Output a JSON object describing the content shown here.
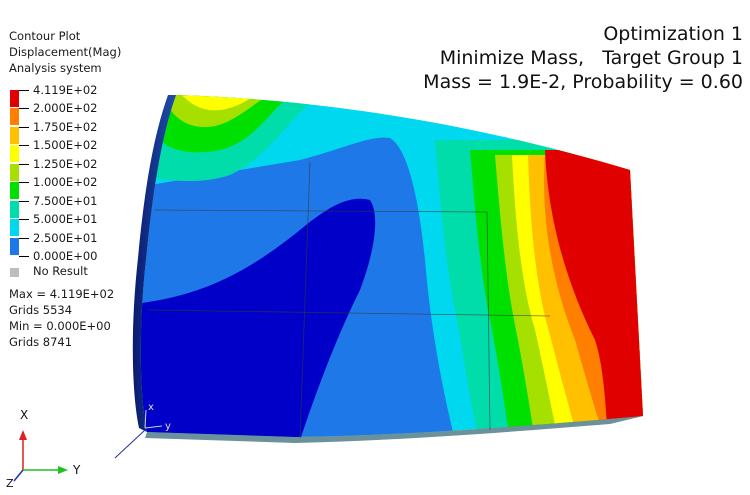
{
  "legend": {
    "header_lines": [
      "Contour Plot",
      "Displacement(Mag)",
      "Analysis system"
    ],
    "values": [
      "4.119E+02",
      "2.000E+02",
      "1.750E+02",
      "1.500E+02",
      "1.250E+02",
      "1.000E+02",
      "7.500E+01",
      "5.000E+01",
      "2.500E+01",
      "0.000E+00"
    ],
    "colors": [
      "#e00000",
      "#ff8000",
      "#ffc000",
      "#ffff00",
      "#a6e000",
      "#00e000",
      "#00ddaa",
      "#00d8f0",
      "#1e78e8",
      "#0000c8"
    ],
    "no_result_label": "No Result",
    "no_result_color": "#bdbdbd"
  },
  "stats": {
    "max": "Max = 4.119E+02",
    "max_grid": "Grids 5534",
    "min": "Min = 0.000E+00",
    "min_grid": "Grids 8741"
  },
  "titles": {
    "line1": "Optimization 1",
    "line2": "Minimize Mass,   Target Group 1",
    "line3": "Mass = 1.9E-2, Probability = 0.60"
  },
  "triad": {
    "x_label": "X",
    "y_label": "Y",
    "z_label": "Z",
    "local_x": "x",
    "local_y": "y"
  }
}
